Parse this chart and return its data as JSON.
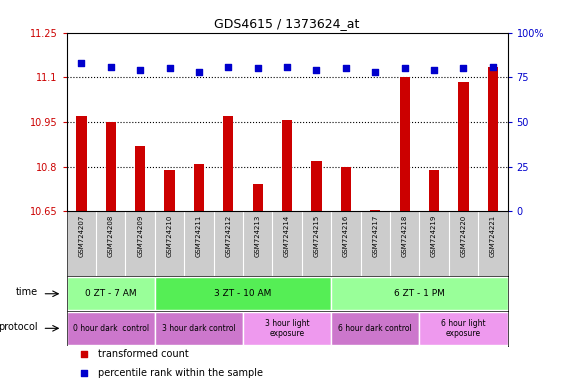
{
  "title": "GDS4615 / 1373624_at",
  "samples": [
    "GSM724207",
    "GSM724208",
    "GSM724209",
    "GSM724210",
    "GSM724211",
    "GSM724212",
    "GSM724213",
    "GSM724214",
    "GSM724215",
    "GSM724216",
    "GSM724217",
    "GSM724218",
    "GSM724219",
    "GSM724220",
    "GSM724221"
  ],
  "transformed_count": [
    10.97,
    10.95,
    10.87,
    10.79,
    10.81,
    10.97,
    10.74,
    10.955,
    10.82,
    10.8,
    10.655,
    11.1,
    10.79,
    11.085,
    11.135
  ],
  "percentile_rank": [
    83,
    81,
    79,
    80,
    78,
    81,
    80,
    81,
    79,
    80,
    78,
    80,
    79,
    80,
    81
  ],
  "ylim_left": [
    10.65,
    11.25
  ],
  "ylim_right": [
    0,
    100
  ],
  "yticks_left": [
    10.65,
    10.8,
    10.95,
    11.1,
    11.25
  ],
  "yticks_right": [
    0,
    25,
    50,
    75,
    100
  ],
  "ytick_labels_left": [
    "10.65",
    "10.8",
    "10.95",
    "11.1",
    "11.25"
  ],
  "ytick_labels_right": [
    "0",
    "25",
    "50",
    "75",
    "100%"
  ],
  "hlines": [
    11.1,
    10.95,
    10.8
  ],
  "bar_color": "#cc0000",
  "dot_color": "#0000cc",
  "time_groups": [
    {
      "label": "0 ZT - 7 AM",
      "start": 0,
      "end": 3,
      "color": "#99ff99"
    },
    {
      "label": "3 ZT - 10 AM",
      "start": 3,
      "end": 9,
      "color": "#55ee55"
    },
    {
      "label": "6 ZT - 1 PM",
      "start": 9,
      "end": 15,
      "color": "#99ff99"
    }
  ],
  "protocol_groups": [
    {
      "label": "0 hour dark  control",
      "start": 0,
      "end": 3,
      "color": "#cc77cc"
    },
    {
      "label": "3 hour dark control",
      "start": 3,
      "end": 6,
      "color": "#cc77cc"
    },
    {
      "label": "3 hour light\nexposure",
      "start": 6,
      "end": 9,
      "color": "#ee99ee"
    },
    {
      "label": "6 hour dark control",
      "start": 9,
      "end": 12,
      "color": "#cc77cc"
    },
    {
      "label": "6 hour light\nexposure",
      "start": 12,
      "end": 15,
      "color": "#ee99ee"
    }
  ],
  "legend_items": [
    {
      "label": "transformed count",
      "color": "#cc0000"
    },
    {
      "label": "percentile rank within the sample",
      "color": "#0000cc"
    }
  ],
  "xtick_bg_color": "#cccccc",
  "plot_bg_color": "#ffffff"
}
